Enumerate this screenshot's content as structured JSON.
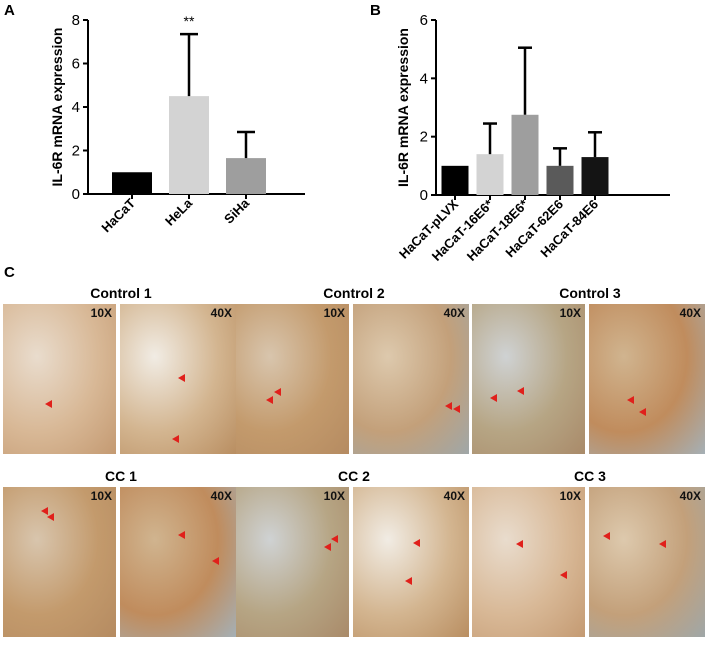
{
  "panels": {
    "a": "A",
    "b": "B",
    "c": "C"
  },
  "chart_data": [
    {
      "type": "bar",
      "ylabel": "IL-6R mRNA expression",
      "ylim": [
        0,
        8
      ],
      "yticks": [
        "0",
        "2",
        "4",
        "6",
        "8"
      ],
      "categories": [
        "HaCaT",
        "HeLa",
        "SiHa"
      ],
      "values": [
        1.0,
        4.5,
        1.65
      ],
      "errors": [
        0,
        2.85,
        1.2
      ],
      "colors": [
        "#000000",
        "#d3d3d3",
        "#9e9e9e"
      ],
      "annotations": [
        "",
        "**",
        ""
      ]
    },
    {
      "type": "bar",
      "ylabel": "IL-6R mRNA expression",
      "ylim": [
        0,
        6
      ],
      "yticks": [
        "0",
        "2",
        "4",
        "6"
      ],
      "categories": [
        "HaCaT-pLVX",
        "HaCaT-16E6*",
        "HaCaT-18E6*",
        "HaCaT-62E6",
        "HaCaT-84E6"
      ],
      "values": [
        1.0,
        1.4,
        2.75,
        1.0,
        1.3
      ],
      "errors": [
        0,
        1.05,
        2.3,
        0.6,
        0.85
      ],
      "colors": [
        "#000000",
        "#d3d3d3",
        "#9e9e9e",
        "#5a5a5a",
        "#141414"
      ],
      "annotations": [
        "",
        "",
        "",
        "",
        ""
      ]
    }
  ],
  "micrographs": {
    "rows": [
      {
        "titles": [
          "Control 1",
          "Control 2",
          "Control 3"
        ]
      },
      {
        "titles": [
          "CC 1",
          "CC 2",
          "CC 3"
        ]
      }
    ],
    "mag_low": "10X",
    "mag_high": "40X"
  }
}
